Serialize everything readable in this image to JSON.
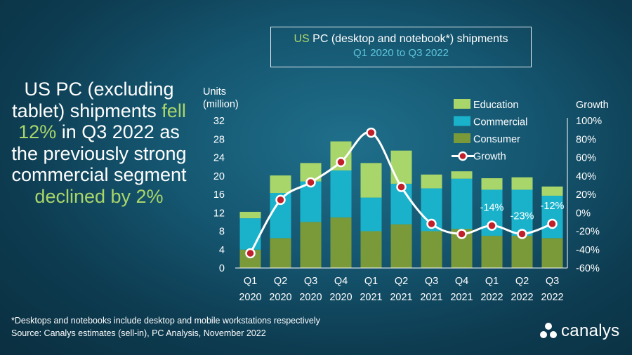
{
  "headline": {
    "part1": "US PC (excluding tablet) shipments",
    "highlight1": "fell 12%",
    "part2": "in Q3 2022 as the previously strong commercial segment",
    "highlight2": "declined",
    "part3": "by 2%"
  },
  "title": {
    "us": "US",
    "rest": "PC (desktop and notebook*) shipments",
    "sub": "Q1 2020 to Q3 2022"
  },
  "footnote": "*Desktops and notebooks include desktop and mobile workstations respectively",
  "source": "Source: Canalys estimates (sell-in), PC Analysis, November 2022",
  "logo": {
    "name": "canalys"
  },
  "colors": {
    "education": "#a9d66a",
    "commercial": "#1ab2cb",
    "consumer": "#7a9a3a",
    "growth_line": "#ffffff",
    "growth_marker": "#c0202a"
  },
  "chart_data": {
    "type": "bar",
    "stacked": true,
    "title": "US PC (desktop and notebook*) shipments",
    "subtitle": "Q1 2020 to Q3 2022",
    "categories": [
      {
        "q": "Q1",
        "y": "2020"
      },
      {
        "q": "Q2",
        "y": "2020"
      },
      {
        "q": "Q3",
        "y": "2020"
      },
      {
        "q": "Q4",
        "y": "2020"
      },
      {
        "q": "Q1",
        "y": "2021"
      },
      {
        "q": "Q2",
        "y": "2021"
      },
      {
        "q": "Q3",
        "y": "2021"
      },
      {
        "q": "Q4",
        "y": "2021"
      },
      {
        "q": "Q1",
        "y": "2022"
      },
      {
        "q": "Q2",
        "y": "2022"
      },
      {
        "q": "Q3",
        "y": "2022"
      }
    ],
    "series": [
      {
        "name": "Consumer",
        "key": "consumer",
        "values": [
          4.0,
          6.5,
          10.0,
          11.0,
          8.0,
          9.5,
          8.0,
          8.5,
          7.0,
          7.0,
          6.5
        ]
      },
      {
        "name": "Commercial",
        "key": "commercial",
        "values": [
          6.8,
          9.8,
          8.8,
          10.2,
          7.3,
          8.8,
          9.3,
          10.9,
          10.0,
          10.0,
          9.2
        ]
      },
      {
        "name": "Education",
        "key": "education",
        "values": [
          1.4,
          3.8,
          4.0,
          6.3,
          7.5,
          7.2,
          3.0,
          1.6,
          2.5,
          2.7,
          2.0
        ]
      }
    ],
    "growth": {
      "name": "Growth",
      "values": [
        -44,
        14,
        33,
        55,
        87,
        28,
        -12,
        -23,
        -14,
        -23,
        -12
      ]
    },
    "growth_labels": [
      {
        "index": 8,
        "text": "-14%"
      },
      {
        "index": 9,
        "text": "-23%"
      },
      {
        "index": 10,
        "text": "-12%"
      }
    ],
    "ylabel_left": [
      "Units",
      "(million)"
    ],
    "ylabel_right": "Growth",
    "ylim_left": [
      0,
      32
    ],
    "yticks_left": [
      0,
      4,
      8,
      12,
      16,
      20,
      24,
      28,
      32
    ],
    "ylim_right": [
      -60,
      100
    ],
    "yticks_right": [
      -60,
      -40,
      -20,
      0,
      20,
      40,
      60,
      80,
      100
    ],
    "legend": [
      "Education",
      "Commercial",
      "Consumer",
      "Growth"
    ],
    "legend_position": "top-right"
  }
}
